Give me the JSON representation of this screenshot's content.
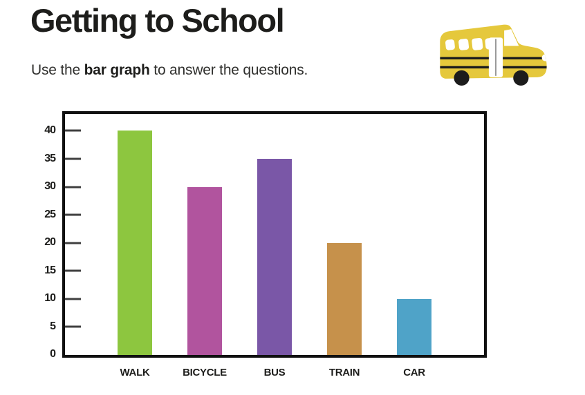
{
  "header": {
    "title": "Getting to School",
    "subtitle_prefix": "Use the ",
    "subtitle_bold": "bar graph",
    "subtitle_suffix": " to answer the questions.",
    "icon": "school-bus-icon"
  },
  "chart_data": {
    "type": "bar",
    "title": "Getting to School",
    "categories": [
      "WALK",
      "BICYCLE",
      "BUS",
      "TRAIN",
      "CAR"
    ],
    "values": [
      40,
      30,
      35,
      20,
      10
    ],
    "colors": [
      "#8DC63F",
      "#B1549E",
      "#7A57A7",
      "#C6914B",
      "#4FA3C8"
    ],
    "yticks": [
      0,
      5,
      10,
      15,
      20,
      25,
      30,
      35,
      40
    ],
    "ylim": [
      0,
      43
    ],
    "xlabel": "",
    "ylabel": "",
    "grid": false,
    "legend": false,
    "axis_color": "#101010",
    "tick_color": "#3f3f3f"
  },
  "bus": {
    "body_color": "#E5C83C",
    "dark_color": "#1c1c1c",
    "door_line_color": "#9a9a9a"
  }
}
